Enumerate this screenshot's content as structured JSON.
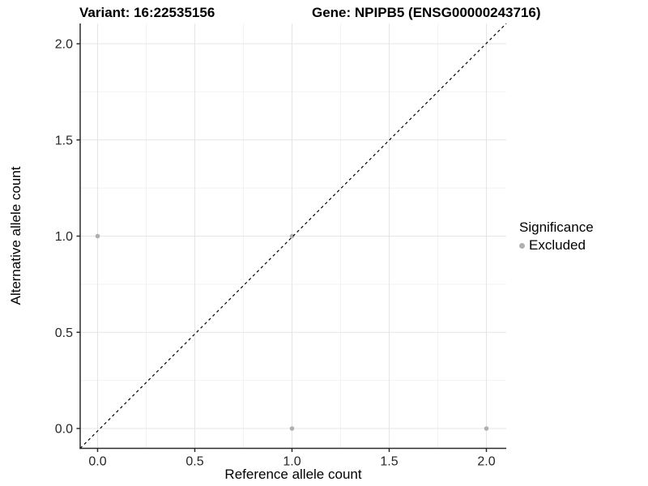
{
  "header": {
    "variant_title": "Variant: 16:22535156",
    "gene_title": "Gene: NPIPB5 (ENSG00000243716)"
  },
  "chart_data": {
    "type": "scatter",
    "title": "Variant: 16:22535156  Gene: NPIPB5 (ENSG00000243716)",
    "xlabel": "Reference allele count",
    "ylabel": "Alternative allele count",
    "xlim": [
      -0.1,
      2.1
    ],
    "ylim": [
      -0.1,
      2.1
    ],
    "grid": "on",
    "grid_major": [
      0,
      0.5,
      1.0,
      1.5,
      2.0
    ],
    "grid_minor": [
      0.25,
      0.75,
      1.25,
      1.75
    ],
    "x_ticks": [
      {
        "value": 0,
        "label": "0.0"
      },
      {
        "value": 0.5,
        "label": "0.5"
      },
      {
        "value": 1.0,
        "label": "1.0"
      },
      {
        "value": 1.5,
        "label": "1.5"
      },
      {
        "value": 2.0,
        "label": "2.0"
      }
    ],
    "y_ticks": [
      {
        "value": 0,
        "label": "0.0"
      },
      {
        "value": 0.5,
        "label": "0.5"
      },
      {
        "value": 1.0,
        "label": "1.0"
      },
      {
        "value": 1.5,
        "label": "1.5"
      },
      {
        "value": 2.0,
        "label": "2.0"
      }
    ],
    "identity_line": {
      "slope": 1,
      "intercept": 0,
      "linetype": "dashed",
      "color": "#000000"
    },
    "series": [
      {
        "name": "Excluded",
        "color": "#b0b0b0",
        "points": [
          {
            "x": 0,
            "y": 1
          },
          {
            "x": 1,
            "y": 1
          },
          {
            "x": 1,
            "y": 0
          },
          {
            "x": 2,
            "y": 0
          }
        ]
      }
    ],
    "legend_position": "right"
  },
  "legend": {
    "title": "Significance",
    "items": [
      {
        "label": "Excluded",
        "color": "#b0b0b0"
      }
    ]
  },
  "colors": {
    "background": "#ffffff",
    "grid_major": "#e5e5e5",
    "grid_minor": "#f2f2f2",
    "axis": "#2b2b2b",
    "point": "#b0b0b0",
    "identity_line": "#000000"
  }
}
